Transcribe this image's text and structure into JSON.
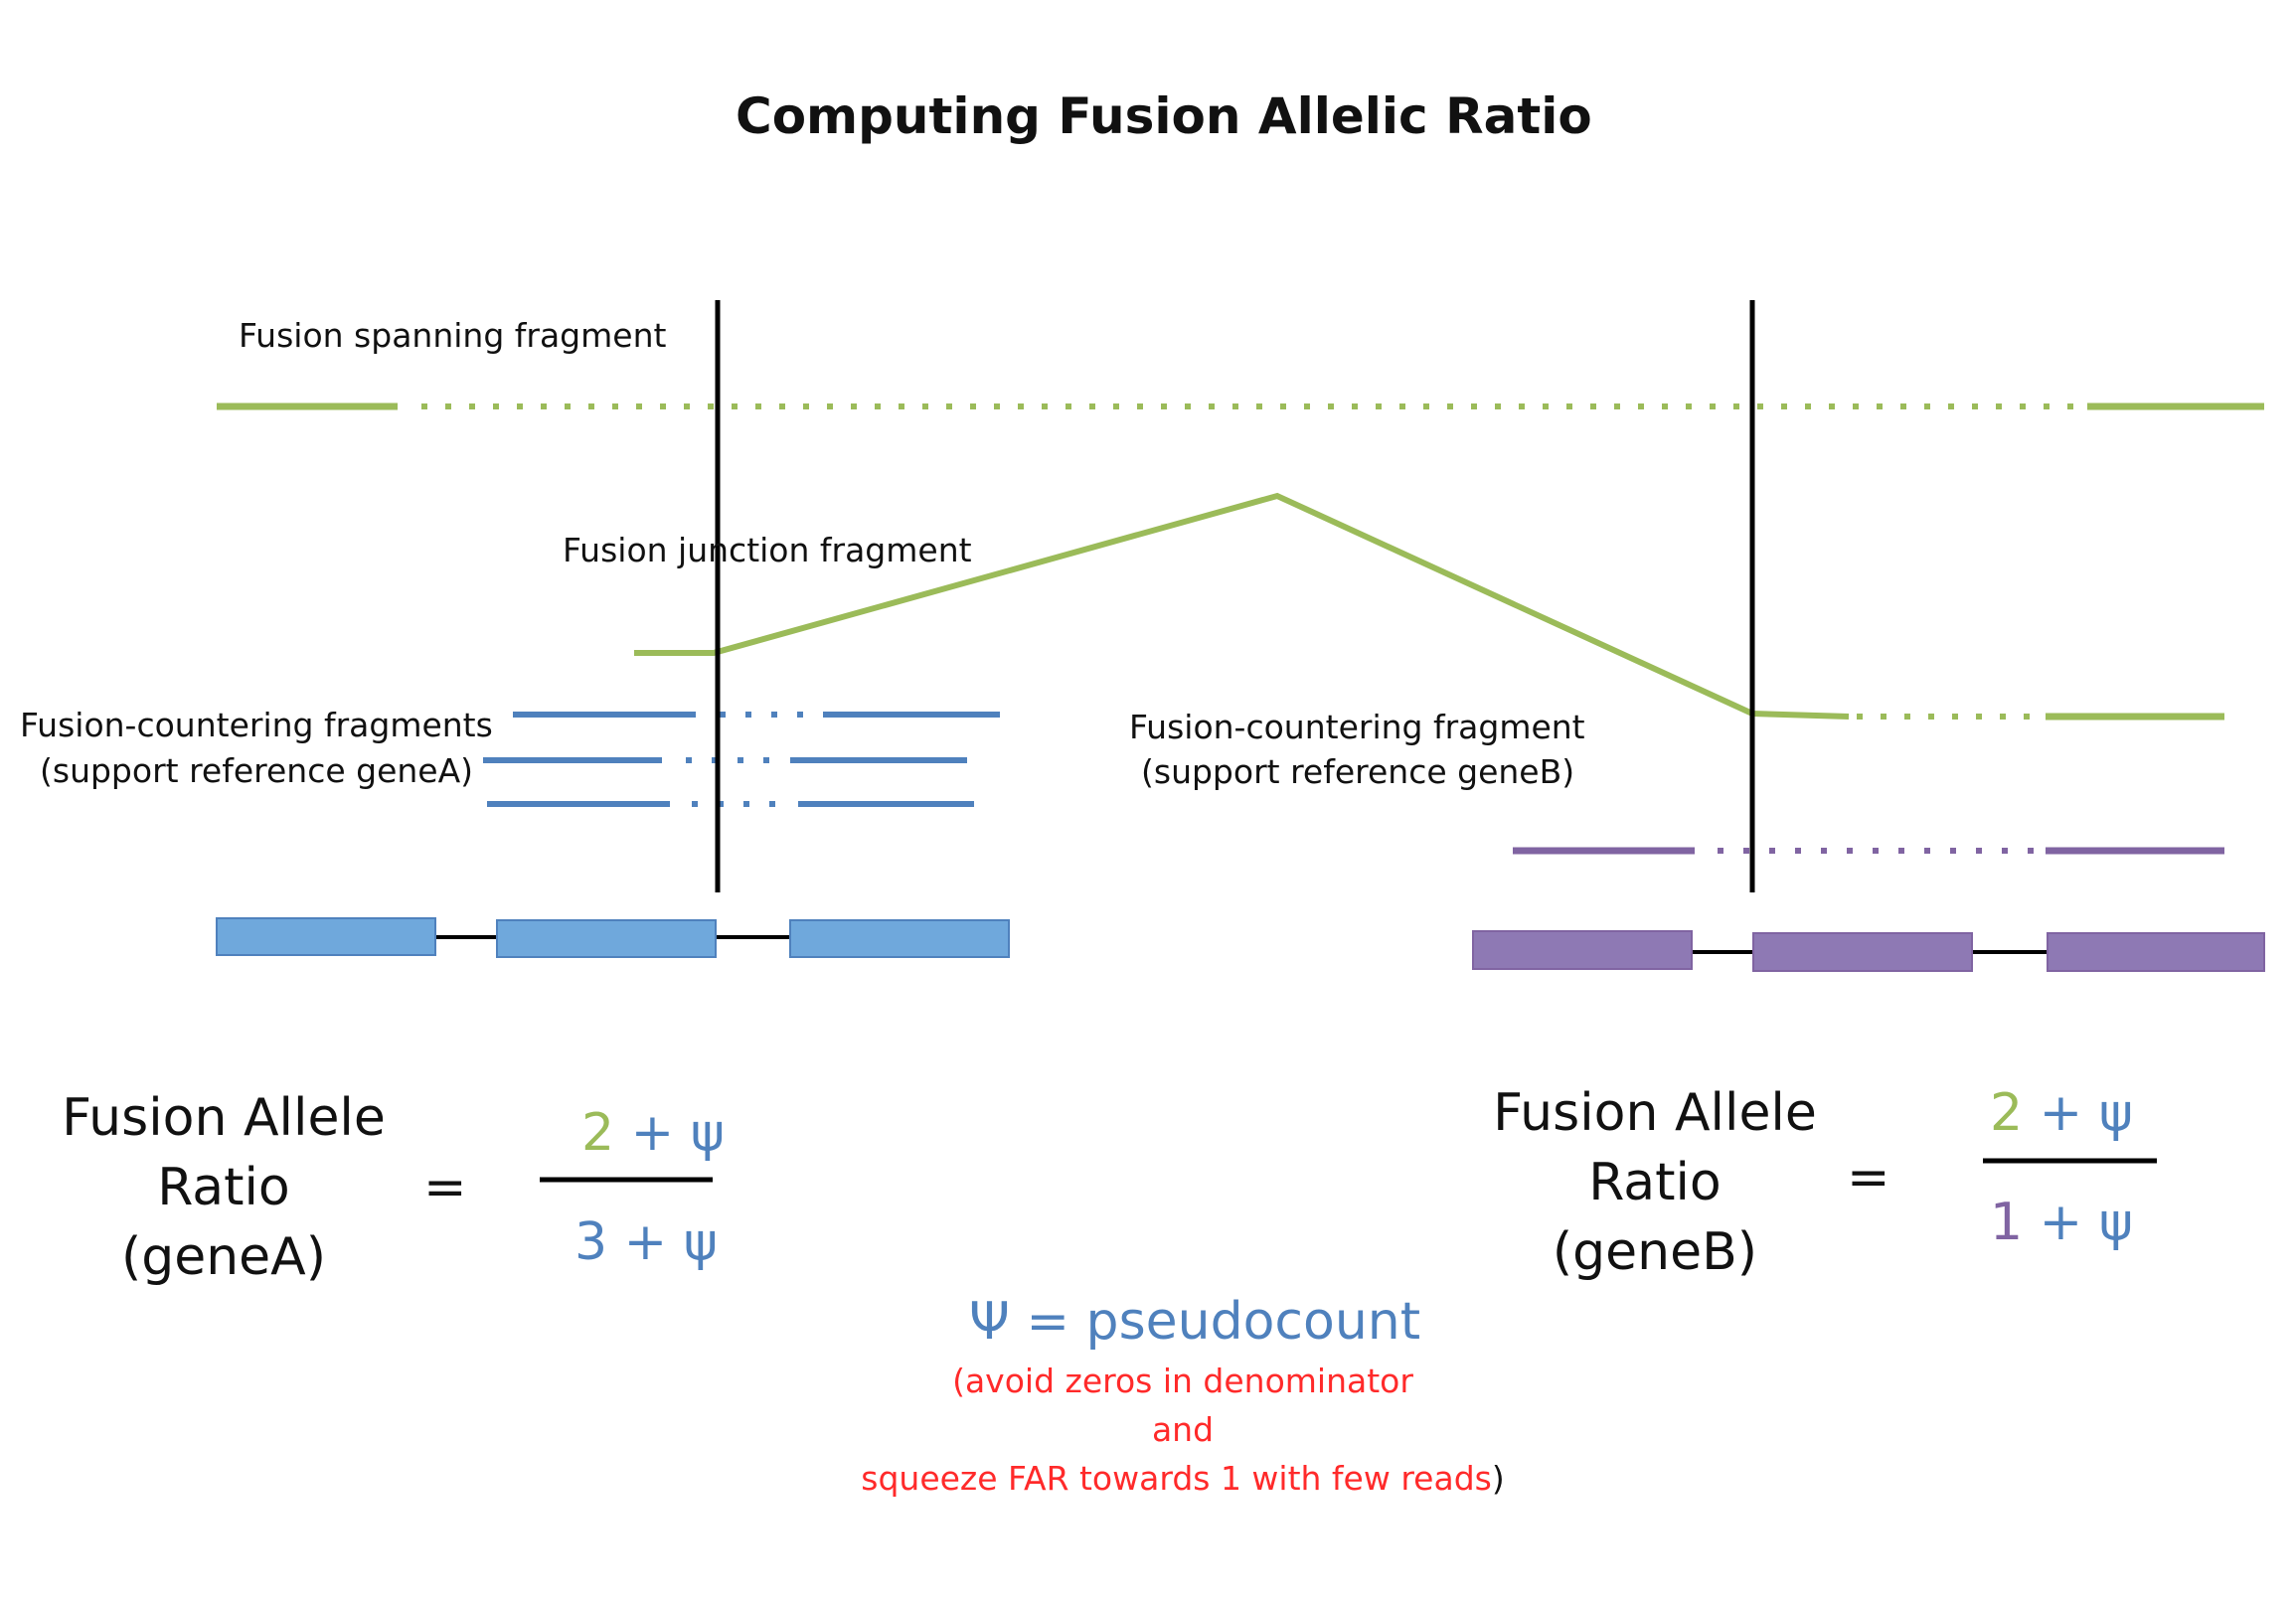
{
  "title": "Computing Fusion Allelic Ratio",
  "labels": {
    "spanning": "Fusion spanning fragment",
    "junction": "Fusion junction fragment",
    "countering_a_line1": "Fusion-countering fragments",
    "countering_a_line2": "(support reference geneA)",
    "countering_b_line1": "Fusion-countering fragment",
    "countering_b_line2": "(support reference geneB)"
  },
  "formula_a": {
    "line1": "Fusion Allele",
    "line2": "Ratio",
    "line3": "(geneA)",
    "equals": "=",
    "numerator_count": "2",
    "numerator_rest": "+ ψ",
    "denominator_count": "3",
    "denominator_rest": "+ ψ"
  },
  "formula_b": {
    "line1": "Fusion Allele",
    "line2": "Ratio",
    "line3": "(geneB)",
    "equals": "=",
    "numerator_count": "2",
    "numerator_rest": "+ ψ",
    "denominator_count": "1",
    "denominator_rest": "+ ψ"
  },
  "pseudocount": {
    "definition": "Ψ = pseudocount",
    "note_line1": "(avoid zeros in denominator",
    "note_line2": "and",
    "note_line3": "squeeze FAR towards 1 with few reads",
    "note_close": ")"
  },
  "colors": {
    "green": "#9bbb59",
    "blue": "#4f81bd",
    "blue_exon": "#6fa8dc",
    "purple": "#8064a2",
    "purple_exon": "#8e79b4",
    "red": "#ff2a2a",
    "black": "#000000"
  }
}
